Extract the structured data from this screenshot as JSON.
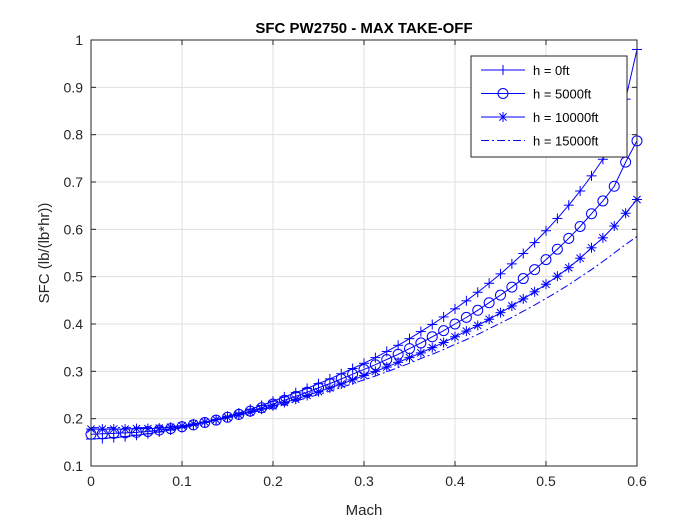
{
  "chart_data": {
    "type": "line",
    "title": "SFC PW2750 - MAX TAKE-OFF",
    "xlabel": "Mach",
    "ylabel": "SFC (lb/(lb*hr))",
    "xlim": [
      0,
      0.6
    ],
    "ylim": [
      0.1,
      1
    ],
    "x_ticks": [
      "0",
      "0.1",
      "0.2",
      "0.3",
      "0.4",
      "0.5",
      "0.6"
    ],
    "y_ticks": [
      "0.1",
      "0.2",
      "0.3",
      "0.4",
      "0.5",
      "0.6",
      "0.7",
      "0.8",
      "0.9",
      "1"
    ],
    "grid": true,
    "legend_position": "top-right",
    "line_color": "#0000ff",
    "x": [
      0,
      0.0125,
      0.025,
      0.0375,
      0.05,
      0.0625,
      0.075,
      0.0875,
      0.1,
      0.1125,
      0.125,
      0.1375,
      0.15,
      0.1625,
      0.175,
      0.1875,
      0.2,
      0.2125,
      0.225,
      0.2375,
      0.25,
      0.2625,
      0.275,
      0.2875,
      0.3,
      0.3125,
      0.325,
      0.3375,
      0.35,
      0.3625,
      0.375,
      0.3875,
      0.4,
      0.4125,
      0.425,
      0.4375,
      0.45,
      0.4625,
      0.475,
      0.4875,
      0.5,
      0.5125,
      0.525,
      0.5375,
      0.55,
      0.5625,
      0.575,
      0.5875,
      0.6
    ],
    "series": [
      {
        "name": "h = 0ft",
        "marker": "plus",
        "linestyle": "solid",
        "values": [
          0.157,
          0.158,
          0.16,
          0.162,
          0.165,
          0.168,
          0.172,
          0.176,
          0.181,
          0.186,
          0.192,
          0.198,
          0.205,
          0.212,
          0.22,
          0.228,
          0.237,
          0.246,
          0.255,
          0.264,
          0.274,
          0.284,
          0.295,
          0.306,
          0.317,
          0.329,
          0.342,
          0.355,
          0.369,
          0.384,
          0.399,
          0.415,
          0.432,
          0.449,
          0.467,
          0.486,
          0.506,
          0.527,
          0.549,
          0.572,
          0.597,
          0.623,
          0.651,
          0.681,
          0.713,
          0.748,
          0.792,
          0.875,
          0.98
        ]
      },
      {
        "name": "h = 5000ft",
        "marker": "circle",
        "linestyle": "solid",
        "values": [
          0.167,
          0.168,
          0.169,
          0.17,
          0.171,
          0.173,
          0.176,
          0.179,
          0.183,
          0.187,
          0.192,
          0.197,
          0.203,
          0.209,
          0.216,
          0.223,
          0.231,
          0.239,
          0.247,
          0.256,
          0.265,
          0.274,
          0.284,
          0.294,
          0.304,
          0.314,
          0.325,
          0.336,
          0.348,
          0.36,
          0.373,
          0.386,
          0.4,
          0.414,
          0.429,
          0.445,
          0.461,
          0.478,
          0.496,
          0.515,
          0.536,
          0.558,
          0.581,
          0.606,
          0.633,
          0.66,
          0.691,
          0.742,
          0.787
        ]
      },
      {
        "name": "h = 10000ft",
        "marker": "star",
        "linestyle": "solid",
        "values": [
          0.178,
          0.178,
          0.178,
          0.178,
          0.179,
          0.179,
          0.18,
          0.182,
          0.185,
          0.189,
          0.193,
          0.198,
          0.203,
          0.208,
          0.214,
          0.22,
          0.227,
          0.234,
          0.241,
          0.249,
          0.257,
          0.265,
          0.273,
          0.282,
          0.291,
          0.3,
          0.309,
          0.319,
          0.329,
          0.339,
          0.35,
          0.361,
          0.373,
          0.385,
          0.397,
          0.41,
          0.424,
          0.438,
          0.453,
          0.468,
          0.484,
          0.501,
          0.519,
          0.539,
          0.561,
          0.582,
          0.607,
          0.634,
          0.663
        ]
      },
      {
        "name": "h = 15000ft",
        "marker": "none",
        "linestyle": "dashdot",
        "values": [
          0.181,
          0.181,
          0.181,
          0.181,
          0.181,
          0.181,
          0.182,
          0.183,
          0.185,
          0.188,
          0.192,
          0.197,
          0.202,
          0.207,
          0.212,
          0.218,
          0.224,
          0.23,
          0.237,
          0.244,
          0.251,
          0.258,
          0.266,
          0.274,
          0.282,
          0.29,
          0.299,
          0.308,
          0.317,
          0.327,
          0.336,
          0.346,
          0.357,
          0.367,
          0.378,
          0.39,
          0.402,
          0.414,
          0.427,
          0.44,
          0.454,
          0.468,
          0.483,
          0.499,
          0.515,
          0.532,
          0.55,
          0.568,
          0.585
        ]
      }
    ]
  }
}
